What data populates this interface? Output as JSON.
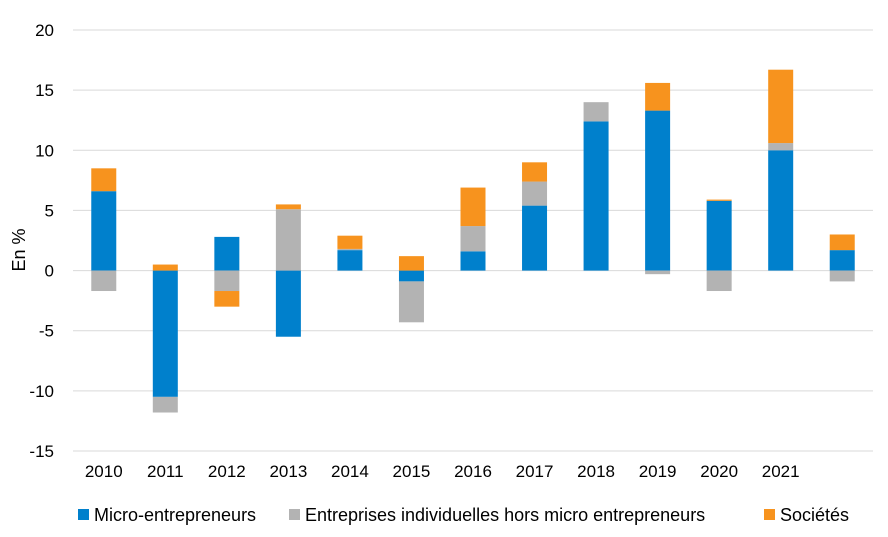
{
  "chart_data": {
    "type": "bar",
    "stacked": true,
    "title": "",
    "xlabel": "",
    "ylabel": "En %",
    "ylim": [
      -15,
      20
    ],
    "yticks": [
      -15,
      -10,
      -5,
      0,
      5,
      10,
      15,
      20
    ],
    "grid": true,
    "legend_position": "bottom",
    "categories": [
      "2010",
      "2011",
      "2012",
      "2013",
      "2014",
      "2015",
      "2016",
      "2017",
      "2018",
      "2019",
      "2020",
      "2021",
      ""
    ],
    "series": [
      {
        "name": "Micro-entrepreneurs",
        "color": "#0080CC",
        "values": [
          6.6,
          -10.5,
          2.8,
          -5.5,
          1.7,
          -0.9,
          1.6,
          5.4,
          12.4,
          13.3,
          5.8,
          10.0,
          1.7
        ]
      },
      {
        "name": "Entreprises individuelles hors micro entrepreneurs",
        "color": "#B3B3B3",
        "values": [
          -1.7,
          -1.3,
          -1.7,
          5.1,
          0.1,
          -3.4,
          2.1,
          2.0,
          1.6,
          -0.3,
          -1.7,
          0.6,
          -0.9
        ]
      },
      {
        "name": "Sociétés",
        "color": "#F7931E",
        "values": [
          1.9,
          0.5,
          -1.3,
          0.4,
          1.1,
          1.2,
          3.2,
          1.6,
          0.0,
          2.3,
          0.1,
          6.1,
          1.3
        ]
      }
    ]
  }
}
